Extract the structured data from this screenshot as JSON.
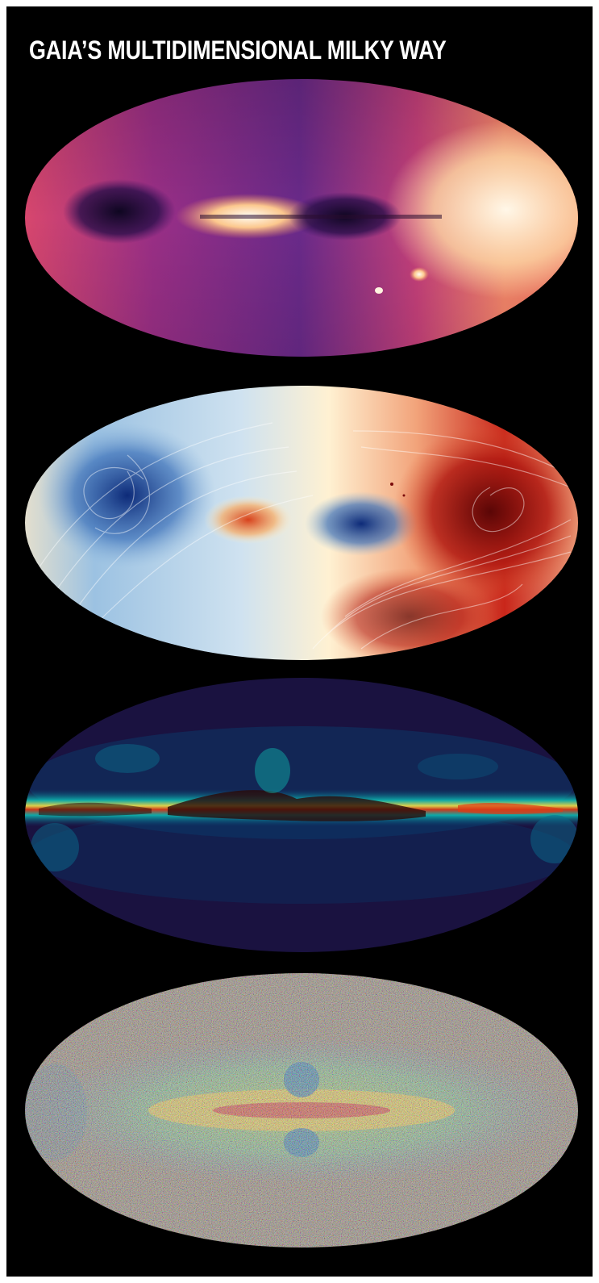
{
  "title": "GAIA’S MULTIDIMENSIONAL MILKY WAY",
  "maps": [
    {
      "id": "map1",
      "colormap": "magma",
      "colors": [
        "#1b0b3c",
        "#5c1a72",
        "#b93a7a",
        "#f06b5a",
        "#fccf9c",
        "#fff8ea"
      ]
    },
    {
      "id": "map2",
      "colormap": "diverging red-blue",
      "colors": [
        "#0d2a78",
        "#4f86c6",
        "#dbe8f2",
        "#fff3d8",
        "#e45a2f",
        "#7a0a0a"
      ]
    },
    {
      "id": "map3",
      "colormap": "dust density",
      "colors": [
        "#1a1240",
        "#0a4a78",
        "#0fb8b0",
        "#f2e14a",
        "#e03a14",
        "#2a0a08"
      ]
    },
    {
      "id": "map4",
      "colormap": "noisy spectral",
      "colors": [
        "#1d6aa8",
        "#3fb6a0",
        "#a8d24a",
        "#f2c43a",
        "#d2332a"
      ]
    }
  ]
}
